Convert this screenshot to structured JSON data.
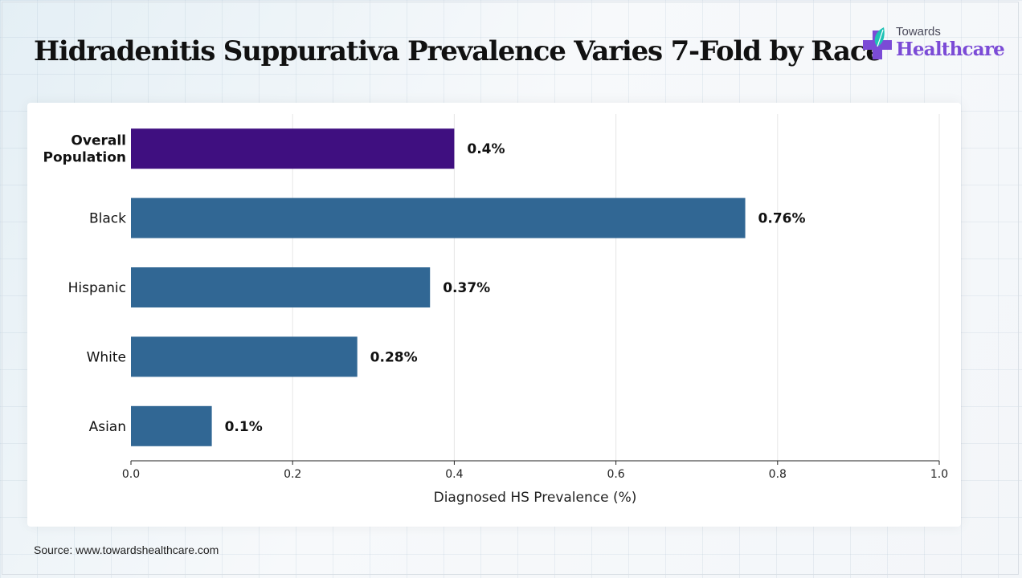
{
  "header": {
    "title": "Hidradenitis Suppurativa Prevalence Varies 7-Fold by Race"
  },
  "logo": {
    "top_text": "Towards",
    "main_text": "Healthcare",
    "icon": "medical-cross-leaf-icon",
    "color": "#7b4bd6"
  },
  "footer": {
    "source": "Source: www.towardshealthcare.com"
  },
  "chart_data": {
    "type": "bar",
    "orientation": "horizontal",
    "categories": [
      "Overall Population",
      "Black",
      "Hispanic",
      "White",
      "Asian"
    ],
    "category_label_lines": [
      [
        "Overall",
        "Population"
      ],
      [
        "Black"
      ],
      [
        "Hispanic"
      ],
      [
        "White"
      ],
      [
        "Asian"
      ]
    ],
    "values": [
      0.4,
      0.76,
      0.37,
      0.28,
      0.1
    ],
    "value_labels": [
      "0.4%",
      "0.76%",
      "0.37%",
      "0.28%",
      "0.1%"
    ],
    "bold_categories": [
      "Overall Population"
    ],
    "colors": [
      "#3f0f80",
      "#316794",
      "#316794",
      "#316794",
      "#316794"
    ],
    "xlabel": "Diagnosed HS Prevalence (%)",
    "ylabel": "",
    "xlim": [
      0,
      1.0
    ],
    "xticks": [
      0.0,
      0.2,
      0.4,
      0.6,
      0.8,
      1.0
    ],
    "xtick_labels": [
      "0.0",
      "0.2",
      "0.4",
      "0.6",
      "0.8",
      "1.0"
    ],
    "grid": "vertical"
  }
}
